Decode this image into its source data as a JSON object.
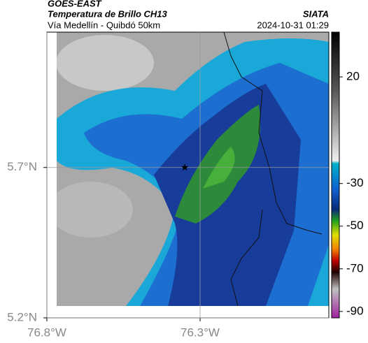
{
  "header": {
    "satellite": "GOES-EAST",
    "product": "Temperatura de Brillo CH13",
    "route": "Vía Medellín - Quibdó 50km",
    "source": "SIATA",
    "datetime": "2024-10-31 01:29"
  },
  "map": {
    "xlim": [
      -76.8,
      -75.88
    ],
    "ylim": [
      5.2,
      6.15
    ],
    "xticks": [
      {
        "value": -76.8,
        "label": "76.8°W"
      },
      {
        "value": -76.3,
        "label": "76.3°W"
      }
    ],
    "yticks": [
      {
        "value": 5.2,
        "label": "5.2°N"
      },
      {
        "value": 5.7,
        "label": "5.7°N"
      }
    ],
    "grid": true,
    "marker": {
      "lon": -76.35,
      "lat": 5.7
    }
  },
  "colorbar": {
    "lim": [
      -93,
      41
    ],
    "ticks": [
      20,
      -30,
      -50,
      -70,
      -90
    ]
  }
}
